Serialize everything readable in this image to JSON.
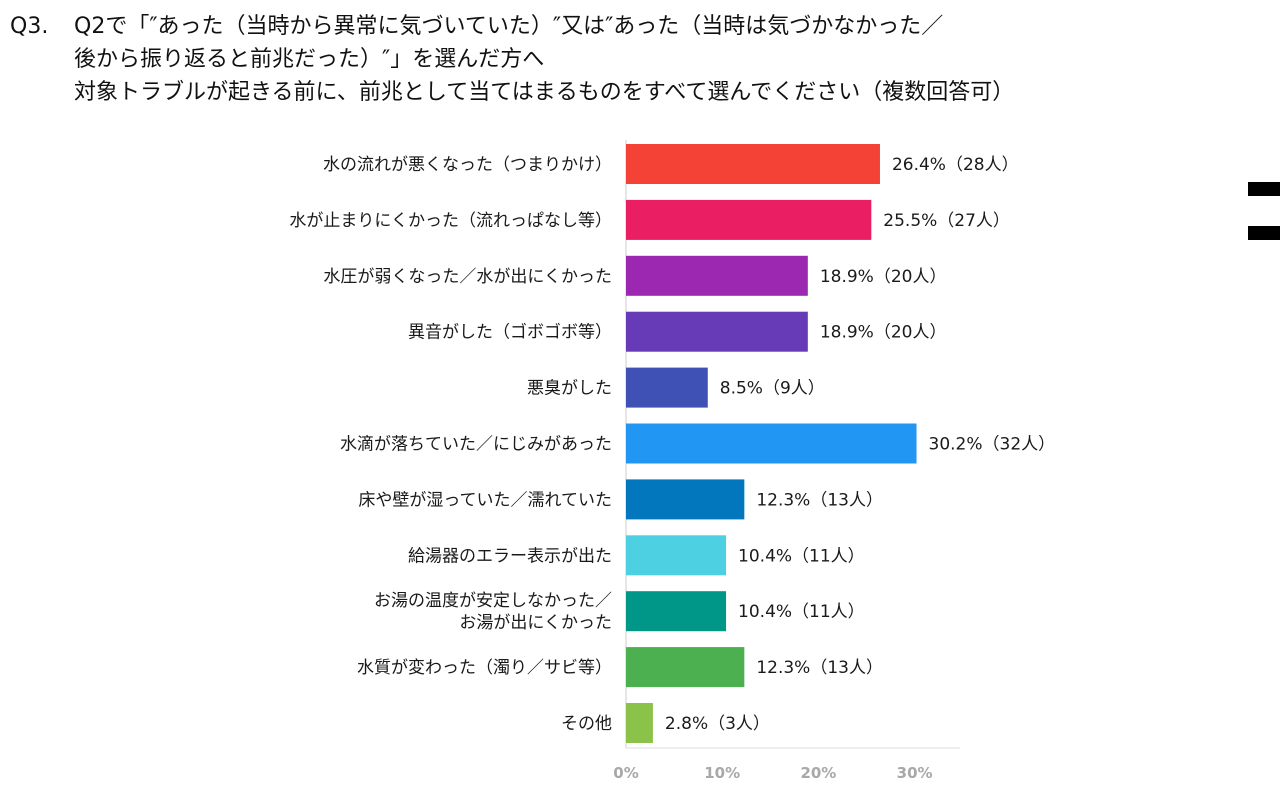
{
  "question": {
    "number": "Q3.",
    "lines": [
      "Q2で「″あった（当時から異常に気づいていた）″又は″あった（当時は気づかなかった／",
      "後から振り返ると前兆だった）″」を選んだ方へ",
      "対象トラブルが起きる前に、前兆として当てはまるものをすべて選んでください（複数回答可）"
    ]
  },
  "chart_data": {
    "type": "bar",
    "orientation": "horizontal",
    "title": "",
    "xlabel": "",
    "ylabel": "",
    "xlim": [
      0,
      35
    ],
    "ticks": [
      "0%",
      "10%",
      "20%",
      "30%"
    ],
    "tick_values": [
      0,
      10,
      20,
      30
    ],
    "grid": false,
    "categories": [
      [
        "水の流れが悪くなった（つまりかけ）"
      ],
      [
        "水が止まりにくかった（流れっぱなし等）"
      ],
      [
        "水圧が弱くなった／水が出にくかった"
      ],
      [
        "異音がした（ゴボゴボ等）"
      ],
      [
        "悪臭がした"
      ],
      [
        "水滴が落ちていた／にじみがあった"
      ],
      [
        "床や壁が湿っていた／濡れていた"
      ],
      [
        "給湯器のエラー表示が出た"
      ],
      [
        "お湯の温度が安定しなかった／",
        "お湯が出にくかった"
      ],
      [
        "水質が変わった（濁り／サビ等）"
      ],
      [
        "その他"
      ]
    ],
    "values": [
      26.4,
      25.5,
      18.9,
      18.9,
      8.5,
      30.2,
      12.3,
      10.4,
      10.4,
      12.3,
      2.8
    ],
    "counts": [
      28,
      27,
      20,
      20,
      9,
      32,
      13,
      11,
      11,
      13,
      3
    ],
    "value_labels": [
      "26.4%（28人）",
      "25.5%（27人）",
      "18.9%（20人）",
      "18.9%（20人）",
      "8.5%（9人）",
      "30.2%（32人）",
      "12.3%（13人）",
      "10.4%（11人）",
      "10.4%（11人）",
      "12.3%（13人）",
      "2.8%（3人）"
    ],
    "colors": [
      "#f44336",
      "#e91e63",
      "#9c27b0",
      "#673ab7",
      "#3f51b5",
      "#2196f3",
      "#0277bd",
      "#4dd0e1",
      "#009688",
      "#4caf50",
      "#8bc34a"
    ]
  }
}
